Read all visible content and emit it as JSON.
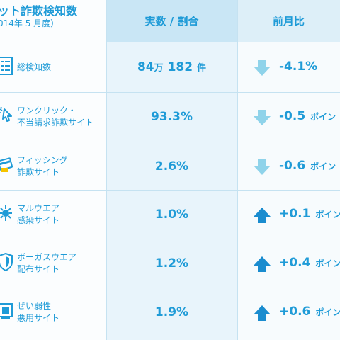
{
  "header": {
    "title": "ット詐欺検知数",
    "subtitle": "014年 5 月度）",
    "col_value": "実数 / 割合",
    "col_change": "前月比"
  },
  "colors": {
    "accent": "#1f9bd7",
    "arrow_down": "#8fd3ea",
    "arrow_up": "#1a8ccf",
    "header_mid": "#c9e6f5"
  },
  "rows": [
    {
      "icon": "document-list-icon",
      "label_line1": "総検知数",
      "label_line2": "",
      "value_num1": "84",
      "value_unit1": "万",
      "value_num2": "182",
      "value_unit2": "件",
      "trend": "down",
      "change": "-4.1%",
      "change_unit": ""
    },
    {
      "icon": "cursor-click-icon",
      "label_line1": "ワンクリック・",
      "label_line2": "不当請求詐欺サイト",
      "value": "93.3%",
      "trend": "down",
      "change": "-0.5",
      "change_unit": "ポイン"
    },
    {
      "icon": "credit-card-icon",
      "label_line1": "フィッシング",
      "label_line2": "詐欺サイト",
      "value": "2.6%",
      "trend": "down",
      "change": "-0.6",
      "change_unit": "ポイン"
    },
    {
      "icon": "virus-icon",
      "label_line1": "マルウエア",
      "label_line2": "感染サイト",
      "value": "1.0%",
      "trend": "up",
      "change": "+0.1",
      "change_unit": "ポイン"
    },
    {
      "icon": "shield-icon",
      "label_line1": "ボーガスウエア",
      "label_line2": "配布サイト",
      "value": "1.2%",
      "trend": "up",
      "change": "+0.4",
      "change_unit": "ポイン"
    },
    {
      "icon": "vulnerable-window-icon",
      "label_line1": "ぜい弱性",
      "label_line2": "悪用サイト",
      "value": "1.9%",
      "trend": "up",
      "change": "+0.6",
      "change_unit": "ポイン"
    }
  ]
}
